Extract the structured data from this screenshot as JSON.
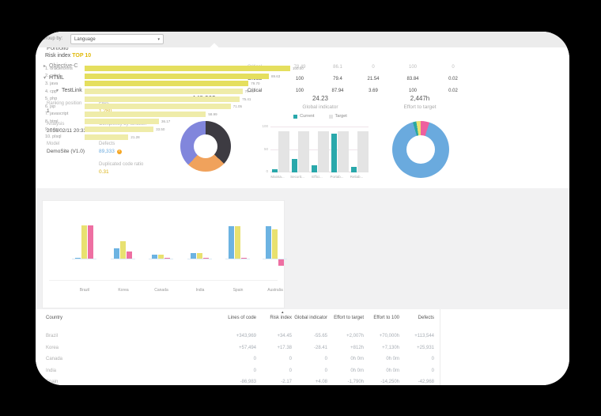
{
  "colors": {
    "background": "#000000",
    "card": "#ffffff",
    "teal": "#29a8ab",
    "gold": "#d9b010",
    "pink": "#ef3e97",
    "blue": "#6aaade",
    "orange": "#f0a25c",
    "periwinkle": "#8186dc",
    "dark_slice": "#3d3b42",
    "top10_bar_dark": "#e5df5e",
    "top10_bar_light": "#efeca9",
    "country_blue": "#6cb3e2",
    "country_yellow": "#e8e170",
    "country_pink": "#ee6fa2"
  },
  "portfolio": {
    "title": "Portfolio",
    "tree": [
      {
        "label": "Objective-C",
        "state": "collapsed",
        "arrow": "▸"
      },
      {
        "label": "HTML",
        "state": "expanded",
        "arrow": "▾"
      },
      {
        "label": "TestLink",
        "state": "expanded",
        "arrow": "▾"
      }
    ],
    "details": [
      {
        "label": "Ranking position",
        "value": "1"
      },
      {
        "label": "Analysis",
        "value": "2016/02/11 20:33"
      },
      {
        "label": "Model",
        "value": "DemoSite (V1.0)"
      },
      {
        "label": "Files",
        "value": "1,280"
      },
      {
        "label": "Complexity by function",
        "value": "7.58"
      },
      {
        "label": "Defects",
        "value": "89,333"
      },
      {
        "label": "Duplicated code ratio",
        "value": "0.31"
      }
    ],
    "defects_info_icon": "i"
  },
  "risk_table": {
    "sort_icon": "▴",
    "columns": [
      "Business value",
      "Complexity",
      "Risk index",
      "Failure risk",
      "Maintenance risk",
      "Security risk"
    ],
    "rows": [
      {
        "cells": [
          "Critical",
          "78.49",
          "86.1",
          "0",
          "100",
          "0"
        ]
      },
      {
        "cells": [
          "Critical",
          "100",
          "79.4",
          "21.54",
          "83.84",
          "0.02"
        ]
      },
      {
        "cells": [
          "Critical",
          "100",
          "87.94",
          "3.69",
          "100",
          "0.02"
        ]
      }
    ]
  },
  "loc_donut": {
    "value": "148,962",
    "label": "Lines of code"
  },
  "global_indicator": {
    "value": "24.23",
    "label": "Global indicator",
    "legend": [
      {
        "name": "Current"
      },
      {
        "name": "Target"
      }
    ],
    "yticks": [
      "100",
      "50",
      "0"
    ]
  },
  "effort_donut": {
    "value": "2,447h",
    "label": "Effort to target"
  },
  "top10_panel": {
    "groupby_label": "Group by:",
    "groupby_value": "Language",
    "dropdown_arrow": "▾",
    "title": "Risk index",
    "title_highlight": "TOP 10"
  },
  "country_table": {
    "sort_icon": "▴",
    "columns": [
      "Country",
      "Lines of code",
      "Risk index",
      "Global indicator",
      "Effort to target",
      "Effort to 100",
      "Defects"
    ],
    "rows": [
      {
        "cells": [
          "Brazil",
          "+343,969",
          "+34.45",
          "-55.65",
          "+2,007h",
          "+70,000h",
          "+113,544"
        ]
      },
      {
        "cells": [
          "Korea",
          "+57,494",
          "+17.38",
          "-28.41",
          "+812h",
          "+7,130h",
          "+25,931"
        ]
      },
      {
        "cells": [
          "Canada",
          "0",
          "0",
          "0",
          "0h 0m",
          "0h 0m",
          "0"
        ]
      },
      {
        "cells": [
          "India",
          "0",
          "0",
          "0",
          "0h 0m",
          "0h 0m",
          "0"
        ]
      },
      {
        "cells": [
          "Spain",
          "-86,983",
          "-2.17",
          "+4.08",
          "-1,790h",
          "-14,250h",
          "-42,968"
        ]
      }
    ]
  },
  "chart_data": [
    {
      "type": "pie",
      "name": "lines-of-code-donut",
      "title": "148,962 Lines of code",
      "segments": [
        {
          "color": "#3d3b42",
          "value": 37
        },
        {
          "color": "#f0a25c",
          "value": 25
        },
        {
          "color": "#8186dc",
          "value": 38
        }
      ]
    },
    {
      "type": "bar",
      "name": "global-indicator",
      "title": "24.23 Global indicator",
      "categories": [
        "Mainta...",
        "Securit...",
        "Effici...",
        "Portab...",
        "Reliab..."
      ],
      "series": [
        {
          "name": "Current",
          "color": "#29a8ab",
          "values": [
            7,
            30,
            15,
            85,
            12
          ]
        },
        {
          "name": "Target",
          "color": "#e4e4e4",
          "values": [
            90,
            90,
            90,
            90,
            90
          ]
        }
      ],
      "ylim": [
        0,
        100
      ],
      "legend_position": "top"
    },
    {
      "type": "pie",
      "name": "effort-to-target-donut",
      "title": "2,447h Effort to target",
      "segments": [
        {
          "color": "#ee5f9e",
          "value": 5
        },
        {
          "color": "#6aaade",
          "value": 90.5
        },
        {
          "color": "#2aa8a0",
          "value": 2
        },
        {
          "color": "#e8e170",
          "value": 2.5
        }
      ]
    },
    {
      "type": "bar",
      "name": "risk-index-top10",
      "orientation": "horizontal",
      "title": "Risk index TOP 10",
      "items": [
        {
          "label": "1. oracleforms",
          "value": 100.0,
          "display": "100.00"
        },
        {
          "label": "2. cobol",
          "value": 89.63,
          "display": "89.63"
        },
        {
          "label": "3. java",
          "value": 79.7,
          "display": "79.70"
        },
        {
          "label": "4. cpp",
          "value": 76.76,
          "display": "76.76"
        },
        {
          "label": "5. php",
          "value": 75.41,
          "display": "75.41"
        },
        {
          "label": "6. jsp",
          "value": 71.05,
          "display": "71.05"
        },
        {
          "label": "7. javascript",
          "value": 58.99,
          "display": "58.99"
        },
        {
          "label": "8. html",
          "value": 36.17,
          "display": "36.17"
        },
        {
          "label": "9. ruby",
          "value": 33.5,
          "display": "33.50"
        },
        {
          "label": "10. plsql",
          "value": 21.28,
          "display": "21.28"
        }
      ],
      "xlim": [
        0,
        100
      ]
    },
    {
      "type": "bar",
      "name": "countries-grouped-bars",
      "categories": [
        "Brazil",
        "Korea",
        "Canada",
        "India",
        "Spain",
        "Australia"
      ],
      "series": [
        {
          "name": "series-blue",
          "color": "#6cb3e2",
          "values": [
            2,
            26,
            10,
            14,
            82,
            82
          ]
        },
        {
          "name": "series-yellow",
          "color": "#e8e170",
          "values": [
            84,
            44,
            10,
            14,
            82,
            74
          ]
        },
        {
          "name": "series-pink",
          "color": "#ee6fa2",
          "values": [
            84,
            18,
            2,
            2,
            3,
            -16
          ]
        }
      ],
      "ylim": [
        -20,
        100
      ]
    }
  ]
}
